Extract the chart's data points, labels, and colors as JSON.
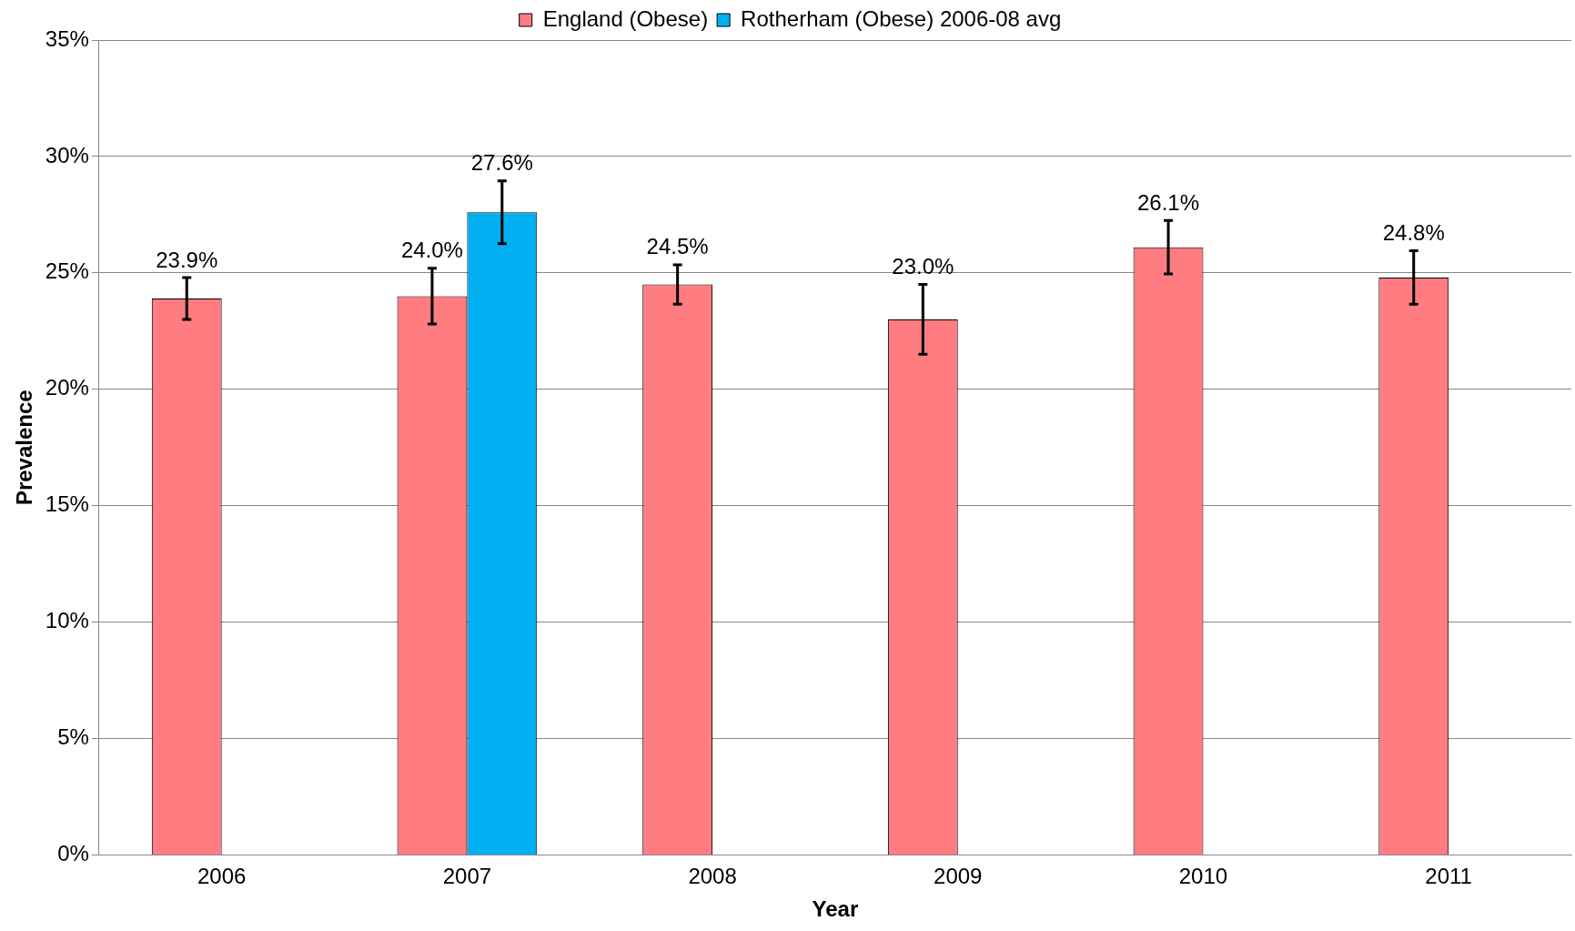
{
  "chart_data": {
    "type": "bar",
    "xlabel": "Year",
    "ylabel": "Prevalence",
    "categories": [
      "2006",
      "2007",
      "2008",
      "2009",
      "2010",
      "2011"
    ],
    "series": [
      {
        "name": "England (Obese)",
        "color": "#ff7c80",
        "values": [
          23.9,
          24.0,
          24.5,
          23.0,
          26.1,
          24.8
        ],
        "errors": [
          0.9,
          1.2,
          0.85,
          1.5,
          1.15,
          1.15
        ],
        "value_labels": [
          "23.9%",
          "24.0%",
          "24.5%",
          "23.0%",
          "26.1%",
          "24.8%"
        ]
      },
      {
        "name": "Rotherham (Obese) 2006-08 avg",
        "color": "#00b0f0",
        "values": [
          null,
          27.6,
          null,
          null,
          null,
          null
        ],
        "errors": [
          null,
          1.35,
          null,
          null,
          null,
          null
        ],
        "value_labels": [
          null,
          "27.6%",
          null,
          null,
          null,
          null
        ]
      }
    ],
    "ylim": [
      0,
      35
    ],
    "yticks": [
      {
        "value": 0,
        "label": "0%"
      },
      {
        "value": 5,
        "label": "5%"
      },
      {
        "value": 10,
        "label": "10%"
      },
      {
        "value": 15,
        "label": "15%"
      },
      {
        "value": 20,
        "label": "20%"
      },
      {
        "value": 25,
        "label": "25%"
      },
      {
        "value": 30,
        "label": "30%"
      },
      {
        "value": 35,
        "label": "35%"
      }
    ],
    "grid": "y",
    "legend": "top"
  }
}
